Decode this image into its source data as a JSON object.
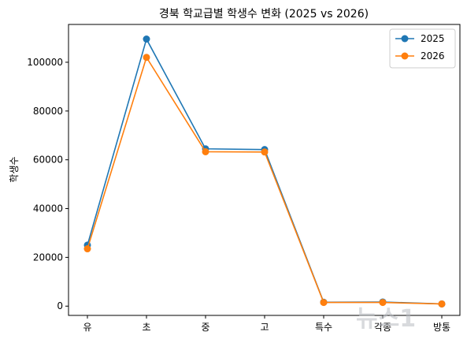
{
  "chart_data": {
    "type": "line",
    "title": "경북 학교급별 학생수 변화 (2025 vs 2026)",
    "xlabel": "",
    "ylabel": "학생수",
    "categories": [
      "유",
      "초",
      "중",
      "고",
      "특수",
      "각종",
      "방통"
    ],
    "ylim": [
      -3800,
      115500
    ],
    "yticks": [
      0,
      20000,
      40000,
      60000,
      80000,
      100000
    ],
    "grid": false,
    "legend_position": "top-right",
    "series": [
      {
        "name": "2025",
        "color": "#1f77b4",
        "values": [
          25000,
          109500,
          64500,
          64200,
          1600,
          1700,
          900
        ]
      },
      {
        "name": "2026",
        "color": "#ff7f0e",
        "values": [
          23500,
          102000,
          63300,
          63200,
          1500,
          1500,
          900
        ]
      }
    ]
  },
  "watermark": {
    "text": "뉴스1",
    "subtext": "방통"
  }
}
